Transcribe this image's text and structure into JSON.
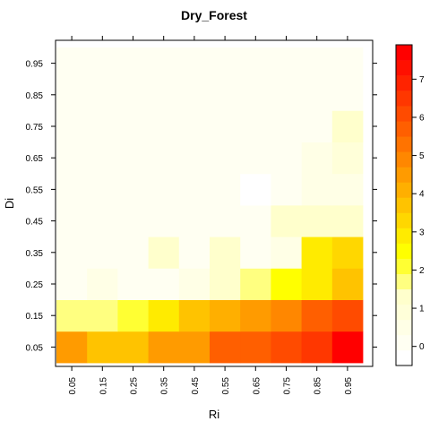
{
  "chart_data": {
    "type": "heatmap",
    "title": "Dry_Forest",
    "xlabel": "Ri",
    "ylabel": "Di",
    "x_ticks": [
      "0.05",
      "0.15",
      "0.25",
      "0.35",
      "0.45",
      "0.55",
      "0.65",
      "0.75",
      "0.85",
      "0.95"
    ],
    "y_ticks": [
      "0.05",
      "0.15",
      "0.25",
      "0.35",
      "0.45",
      "0.55",
      "0.65",
      "0.75",
      "0.85",
      "0.95"
    ],
    "legend": {
      "placement": "right",
      "ticks": [
        "0",
        "1",
        "2",
        "3",
        "4",
        "5",
        "6",
        "7"
      ],
      "range": [
        -0.5,
        7.9
      ],
      "step": 0.4
    },
    "values": [
      [
        4.5,
        3.5,
        3.8,
        4.5,
        4.6,
        5.5,
        5.5,
        6.0,
        6.4,
        7.5
      ],
      [
        1.7,
        1.7,
        2.1,
        3.0,
        3.5,
        3.9,
        4.4,
        5.0,
        5.5,
        6.1
      ],
      [
        0.0,
        0.5,
        0.0,
        0.0,
        0.6,
        1.3,
        1.7,
        2.4,
        3.0,
        3.7
      ],
      [
        0.0,
        0.0,
        0.0,
        1.3,
        0.0,
        1.3,
        0.0,
        0.5,
        3.0,
        3.3
      ],
      [
        0.0,
        0.0,
        0.0,
        0.0,
        0.0,
        0.0,
        0.0,
        1.1,
        1.4,
        1.4
      ],
      [
        -0.1,
        0.0,
        0.0,
        0.0,
        0.0,
        0.0,
        -0.2,
        0.0,
        0.5,
        0.6
      ],
      [
        0.0,
        0.0,
        0.0,
        0.0,
        -0.1,
        0.0,
        0.0,
        -0.1,
        0.6,
        1.0
      ],
      [
        0.0,
        0.0,
        0.0,
        0.0,
        0.0,
        0.0,
        0.0,
        0.0,
        -0.1,
        1.2
      ],
      [
        0.0,
        0.0,
        0.0,
        0.0,
        0.0,
        0.0,
        0.0,
        -0.1,
        0.0,
        -0.1
      ],
      [
        0.0,
        0.0,
        0.0,
        0.0,
        -0.1,
        0.0,
        0.0,
        0.0,
        0.0,
        -0.1
      ]
    ],
    "colors": [
      "#FFFFFF",
      "#FFFFF2",
      "#FFFFE6",
      "#FFFFD9",
      "#FFFFCC",
      "#FFFF80",
      "#FFFF33",
      "#FFFF00",
      "#FFEB00",
      "#FFD700",
      "#FFC300",
      "#FFAF00",
      "#FF9B00",
      "#FF8700",
      "#FF7300",
      "#FF5F00",
      "#FF4B00",
      "#FF3700",
      "#FF2300",
      "#FF1000",
      "#FF0000"
    ],
    "grid": false
  }
}
